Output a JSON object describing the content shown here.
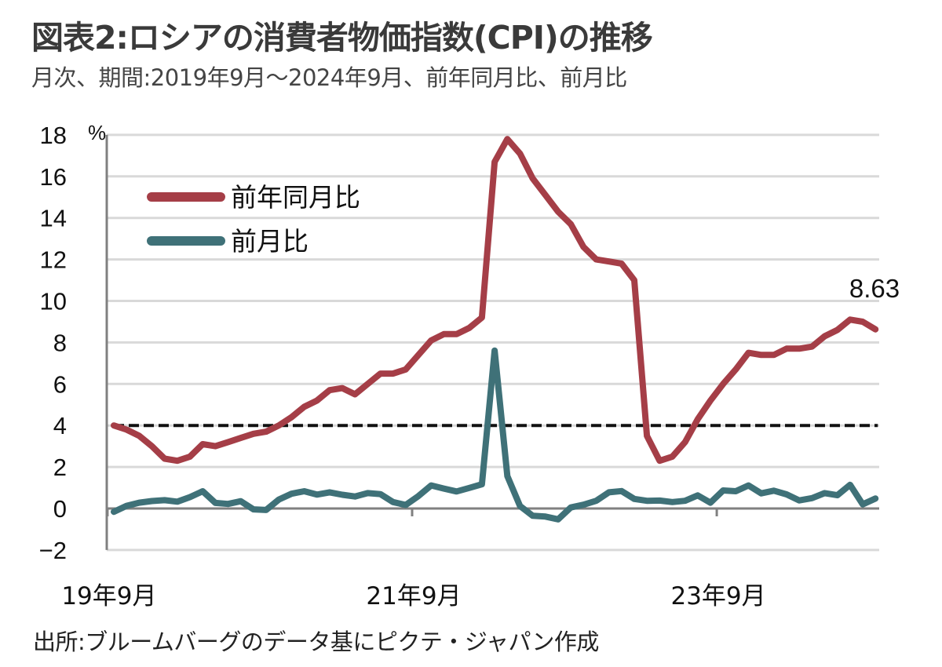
{
  "header": {
    "title": "図表2:ロシアの消費者物価指数(CPI)の推移",
    "subtitle": "月次、期間:2019年9月～2024年9月、前年同月比、前月比"
  },
  "footer": {
    "source": "出所:ブルームバーグのデータ基にピクテ・ジャパン作成"
  },
  "chart_data": {
    "type": "line",
    "title": "図表2:ロシアの消費者物価指数(CPI)の推移",
    "subtitle": "月次、期間:2019年9月～2024年9月、前年同月比、前月比",
    "ylabel": "%",
    "xlabel": "",
    "ylim": [
      -2,
      18
    ],
    "yticks": [
      -2,
      0,
      2,
      4,
      6,
      8,
      10,
      12,
      14,
      16,
      18
    ],
    "ytick_labels": [
      "−2",
      "0",
      "2",
      "4",
      "6",
      "8",
      "10",
      "12",
      "14",
      "16",
      "18"
    ],
    "grid": true,
    "x_start": "2019-09",
    "x_end": "2024-09",
    "x_count": 61,
    "xtick_labels": [
      {
        "label": "19年9月",
        "index": 0
      },
      {
        "label": "21年9月",
        "index": 24
      },
      {
        "label": "23年9月",
        "index": 48
      }
    ],
    "reference_line": {
      "y": 4,
      "style": "dashed",
      "color": "#111111"
    },
    "legend_position": "top-left",
    "series": [
      {
        "name": "前年同月比",
        "color": "#A53E47",
        "values": [
          4.0,
          3.8,
          3.5,
          3.0,
          2.4,
          2.3,
          2.5,
          3.1,
          3.0,
          3.2,
          3.4,
          3.6,
          3.7,
          4.0,
          4.4,
          4.9,
          5.2,
          5.7,
          5.8,
          5.5,
          6.0,
          6.5,
          6.5,
          6.7,
          7.4,
          8.1,
          8.4,
          8.4,
          8.7,
          9.2,
          16.7,
          17.8,
          17.1,
          15.9,
          15.1,
          14.3,
          13.7,
          12.6,
          12.0,
          11.9,
          11.8,
          11.0,
          3.5,
          2.3,
          2.5,
          3.2,
          4.3,
          5.2,
          6.0,
          6.7,
          7.5,
          7.4,
          7.4,
          7.7,
          7.7,
          7.8,
          8.3,
          8.6,
          9.1,
          9.0,
          8.63
        ]
      },
      {
        "name": "前月比",
        "color": "#3F7178",
        "values": [
          -0.16,
          0.13,
          0.28,
          0.36,
          0.4,
          0.33,
          0.55,
          0.83,
          0.27,
          0.22,
          0.35,
          -0.04,
          -0.07,
          0.43,
          0.71,
          0.83,
          0.67,
          0.78,
          0.66,
          0.58,
          0.74,
          0.69,
          0.31,
          0.17,
          0.6,
          1.11,
          0.96,
          0.82,
          0.99,
          1.17,
          7.61,
          1.56,
          0.12,
          -0.35,
          -0.39,
          -0.52,
          0.05,
          0.18,
          0.37,
          0.78,
          0.84,
          0.46,
          0.37,
          0.38,
          0.31,
          0.37,
          0.63,
          0.28,
          0.87,
          0.83,
          1.11,
          0.73,
          0.86,
          0.68,
          0.39,
          0.5,
          0.74,
          0.64,
          1.14,
          0.2,
          0.48
        ]
      }
    ],
    "annotations": [
      {
        "text": "8.63",
        "series": "前年同月比",
        "index": 60
      }
    ]
  }
}
